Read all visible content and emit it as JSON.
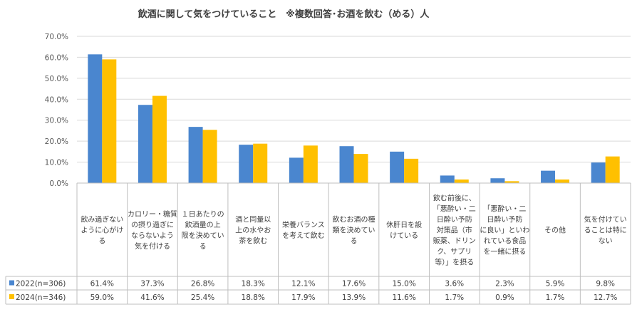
{
  "chart_data": {
    "type": "bar",
    "title": "飲酒に関して気をつけていること　※複数回答･お酒を飲む（める）人",
    "ylim": [
      0,
      70
    ],
    "yticks": [
      "0.0%",
      "10.0%",
      "20.0%",
      "30.0%",
      "40.0%",
      "50.0%",
      "60.0%",
      "70.0%"
    ],
    "categories": [
      [
        "飲み過ぎない",
        "ように心がけ",
        "る"
      ],
      [
        "カロリー・糖質",
        "の摂り過ぎに",
        "ならないよう",
        "気を付ける"
      ],
      [
        "１日あたりの",
        "飲酒量の上",
        "限を決めてい",
        "る"
      ],
      [
        "酒と同量以",
        "上の水やお",
        "茶を飲む"
      ],
      [
        "栄養バランス",
        "を考えて飲む"
      ],
      [
        "飲むお酒の種",
        "類を決めてい",
        "る"
      ],
      [
        "休肝日を設",
        "けている"
      ],
      [
        "飲む前後に、",
        "「悪酔い・二",
        "日酔い予防",
        "対策品（市",
        "販薬、ドリン",
        "ク、サプリ",
        "等）」を摂る"
      ],
      [
        "「悪酔い・二",
        "日酔い予防",
        "に良い」といわ",
        "れている食品",
        "を一緒に摂る"
      ],
      [
        "その他"
      ],
      [
        "気を付けてい",
        "ることは特に",
        "ない"
      ]
    ],
    "series": [
      {
        "name": "2022(n=306)",
        "color": "#4a86cf",
        "values": [
          61.4,
          37.3,
          26.8,
          18.3,
          12.1,
          17.6,
          15.0,
          3.6,
          2.3,
          5.9,
          9.8
        ],
        "labels": [
          "61.4%",
          "37.3%",
          "26.8%",
          "18.3%",
          "12.1%",
          "17.6%",
          "15.0%",
          "3.6%",
          "2.3%",
          "5.9%",
          "9.8%"
        ]
      },
      {
        "name": "2024(n=346)",
        "color": "#ffc000",
        "values": [
          59.0,
          41.6,
          25.4,
          18.8,
          17.9,
          13.9,
          11.6,
          1.7,
          0.9,
          1.7,
          12.7
        ],
        "labels": [
          "59.0%",
          "41.6%",
          "25.4%",
          "18.8%",
          "17.9%",
          "13.9%",
          "11.6%",
          "1.7%",
          "0.9%",
          "1.7%",
          "12.7%"
        ]
      }
    ],
    "xlabel": "",
    "ylabel": ""
  }
}
